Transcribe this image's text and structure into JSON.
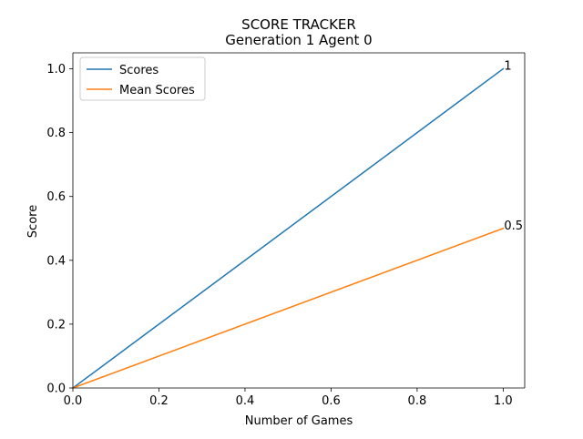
{
  "chart_data": {
    "type": "line",
    "title": "SCORE TRACKER",
    "subtitle": "Generation 1 Agent 0",
    "xlabel": "Number of Games",
    "ylabel": "Score",
    "xlim": [
      0,
      1.05
    ],
    "ylim": [
      0,
      1.05
    ],
    "xticks": [
      "0.0",
      "0.2",
      "0.4",
      "0.6",
      "0.8",
      "1.0"
    ],
    "yticks": [
      "0.0",
      "0.2",
      "0.4",
      "0.6",
      "0.8",
      "1.0"
    ],
    "grid": false,
    "legend_position": "top-left",
    "series": [
      {
        "name": "Scores",
        "color": "#1f77b4",
        "x": [
          0,
          1
        ],
        "y": [
          0,
          1
        ],
        "end_label": "1"
      },
      {
        "name": "Mean Scores",
        "color": "#ff7f0e",
        "x": [
          0,
          1
        ],
        "y": [
          0,
          0.5
        ],
        "end_label": "0.5"
      }
    ]
  }
}
